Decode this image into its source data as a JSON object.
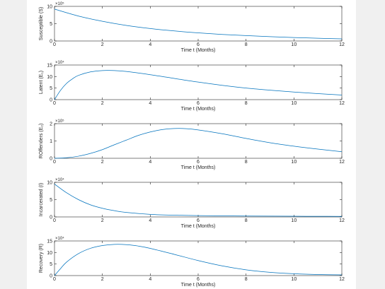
{
  "chart_data": [
    {
      "type": "line",
      "xlabel": "Time t (Months)",
      "ylabel": "Susceptible (S)",
      "exponent_label": "×10⁵",
      "xlim": [
        0,
        12
      ],
      "ylim": [
        0,
        10
      ],
      "x_ticks": [
        0,
        2,
        4,
        6,
        8,
        10,
        12
      ],
      "y_ticks": [
        0,
        5,
        10
      ],
      "color": "#0072bd",
      "x": [
        0,
        1,
        2,
        3,
        4,
        5,
        6,
        7,
        8,
        9,
        10,
        11,
        12
      ],
      "y": [
        9.2,
        7.2,
        5.7,
        4.5,
        3.6,
        2.9,
        2.35,
        1.9,
        1.55,
        1.25,
        1.0,
        0.8,
        0.6
      ]
    },
    {
      "type": "line",
      "xlabel": "Time t (Months)",
      "ylabel": "Latent (E₁)",
      "exponent_label": "×10⁴",
      "xlim": [
        0,
        12
      ],
      "ylim": [
        0,
        15
      ],
      "x_ticks": [
        0,
        2,
        4,
        6,
        8,
        10,
        12
      ],
      "y_ticks": [
        0,
        5,
        10,
        15
      ],
      "color": "#0072bd",
      "x": [
        0,
        0.25,
        0.5,
        0.75,
        1,
        1.5,
        2,
        2.5,
        3,
        4,
        5,
        6,
        7,
        8,
        9,
        10,
        11,
        12
      ],
      "y": [
        0,
        4.0,
        7.0,
        9.0,
        10.5,
        12.0,
        12.6,
        12.6,
        12.2,
        10.8,
        9.2,
        7.6,
        6.2,
        5.0,
        4.1,
        3.3,
        2.6,
        2.0
      ]
    },
    {
      "type": "line",
      "xlabel": "Time t (Months)",
      "ylabel": "ROffenders (E₂)",
      "exponent_label": "×10⁵",
      "xlim": [
        0,
        12
      ],
      "ylim": [
        0,
        2
      ],
      "x_ticks": [
        0,
        2,
        4,
        6,
        8,
        10,
        12
      ],
      "y_ticks": [
        0,
        1,
        2
      ],
      "color": "#0072bd",
      "x": [
        0,
        0.5,
        1,
        1.5,
        2,
        2.5,
        3,
        3.5,
        4,
        4.5,
        5,
        5.5,
        6,
        7,
        8,
        9,
        10,
        11,
        12
      ],
      "y": [
        0,
        0.03,
        0.12,
        0.28,
        0.5,
        0.78,
        1.05,
        1.32,
        1.52,
        1.66,
        1.72,
        1.71,
        1.64,
        1.42,
        1.15,
        0.9,
        0.7,
        0.53,
        0.38
      ]
    },
    {
      "type": "line",
      "xlabel": "Time t (Months)",
      "ylabel": "Incarcerated (I)",
      "exponent_label": "×10⁴",
      "xlim": [
        0,
        12
      ],
      "ylim": [
        0,
        10
      ],
      "x_ticks": [
        0,
        2,
        4,
        6,
        8,
        10,
        12
      ],
      "y_ticks": [
        0,
        5,
        10
      ],
      "color": "#0072bd",
      "x": [
        0,
        0.5,
        1,
        1.5,
        2,
        2.5,
        3,
        4,
        5,
        6,
        7,
        8,
        9,
        10,
        11,
        12
      ],
      "y": [
        9.5,
        7.0,
        5.0,
        3.5,
        2.5,
        1.8,
        1.3,
        0.75,
        0.5,
        0.38,
        0.3,
        0.25,
        0.22,
        0.2,
        0.18,
        0.16
      ]
    },
    {
      "type": "line",
      "xlabel": "Time t (Months)",
      "ylabel": "Recovery (R)",
      "exponent_label": "×10⁴",
      "xlim": [
        0,
        12
      ],
      "ylim": [
        0,
        15
      ],
      "x_ticks": [
        0,
        2,
        4,
        6,
        8,
        10,
        12
      ],
      "y_ticks": [
        0,
        5,
        10,
        15
      ],
      "color": "#0072bd",
      "x": [
        0,
        0.25,
        0.5,
        1,
        1.5,
        2,
        2.5,
        3,
        3.5,
        4,
        5,
        6,
        7,
        8,
        9,
        10,
        11,
        12
      ],
      "y": [
        0,
        3.0,
        5.8,
        9.5,
        11.8,
        13.0,
        13.5,
        13.4,
        12.8,
        11.8,
        9.2,
        6.5,
        4.2,
        2.5,
        1.4,
        0.8,
        0.45,
        0.3
      ]
    }
  ]
}
